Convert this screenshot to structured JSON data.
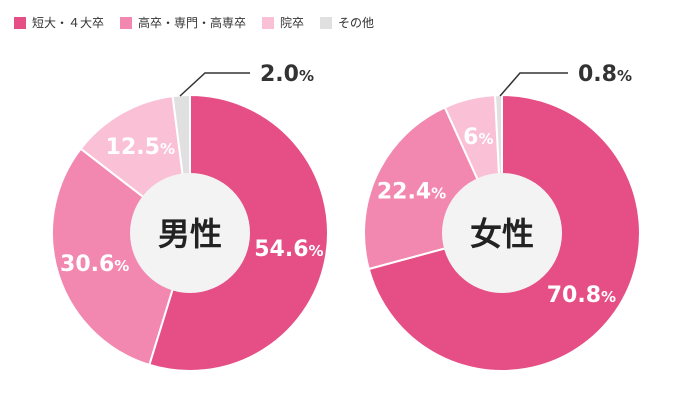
{
  "legend": [
    {
      "label": "短大・４大卒",
      "color": "#e64f86"
    },
    {
      "label": "高卒・専門・高専卒",
      "color": "#f287b0"
    },
    {
      "label": "院卒",
      "color": "#fac1d6"
    },
    {
      "label": "その他",
      "color": "#e0e0e0"
    }
  ],
  "chart_data": [
    {
      "type": "pie",
      "title": "男性",
      "categories": [
        "短大・４大卒",
        "高卒・専門・高専卒",
        "院卒",
        "その他"
      ],
      "values": [
        54.6,
        30.6,
        12.5,
        2.0
      ],
      "value_labels": [
        "54.6",
        "30.6",
        "12.5",
        "2.0"
      ],
      "unit": "%",
      "colors": [
        "#e64f86",
        "#f287b0",
        "#fac1d6",
        "#e0e0e0"
      ],
      "donut": true
    },
    {
      "type": "pie",
      "title": "女性",
      "categories": [
        "短大・４大卒",
        "高卒・専門・高専卒",
        "院卒",
        "その他"
      ],
      "values": [
        70.8,
        22.4,
        6,
        0.8
      ],
      "value_labels": [
        "70.8",
        "22.4",
        "6",
        "0.8"
      ],
      "unit": "%",
      "colors": [
        "#e64f86",
        "#f287b0",
        "#fac1d6",
        "#e0e0e0"
      ],
      "donut": true
    }
  ]
}
